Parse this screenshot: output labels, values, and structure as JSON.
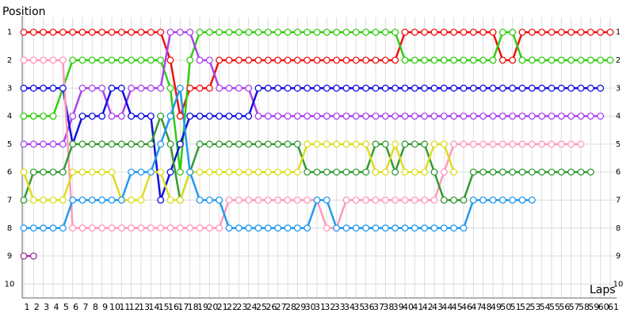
{
  "chart_data": {
    "type": "line",
    "y_label": "Position",
    "x_label": "Laps",
    "x": [
      1,
      2,
      3,
      4,
      5,
      6,
      7,
      8,
      9,
      10,
      11,
      12,
      13,
      14,
      15,
      16,
      17,
      18,
      19,
      20,
      21,
      22,
      23,
      24,
      25,
      26,
      27,
      28,
      29,
      30,
      31,
      32,
      33,
      34,
      35,
      36,
      37,
      38,
      39,
      40,
      41,
      42,
      43,
      44,
      45,
      46,
      47,
      48,
      49,
      50,
      51,
      52,
      53,
      54,
      55,
      56,
      57,
      58,
      59,
      60,
      61
    ],
    "xlim": [
      1,
      61
    ],
    "ylim": [
      10.5,
      0.5
    ],
    "yticks": [
      1,
      2,
      3,
      4,
      5,
      6,
      7,
      8,
      9,
      10
    ],
    "grid": true,
    "series": [
      {
        "color": "#ee1111",
        "values": [
          1,
          1,
          1,
          1,
          1,
          1,
          1,
          1,
          1,
          1,
          1,
          1,
          1,
          1,
          1,
          2,
          4,
          3,
          3,
          3,
          2,
          2,
          2,
          2,
          2,
          2,
          2,
          2,
          2,
          2,
          2,
          2,
          2,
          2,
          2,
          2,
          2,
          2,
          2,
          1,
          1,
          1,
          1,
          1,
          1,
          1,
          1,
          1,
          1,
          2,
          2,
          1,
          1,
          1,
          1,
          1,
          1,
          1,
          1,
          1,
          1
        ]
      },
      {
        "color": "#33cc11",
        "values": [
          4,
          4,
          4,
          4,
          3,
          2,
          2,
          2,
          2,
          2,
          2,
          2,
          2,
          2,
          2,
          3,
          6,
          2,
          1,
          1,
          1,
          1,
          1,
          1,
          1,
          1,
          1,
          1,
          1,
          1,
          1,
          1,
          1,
          1,
          1,
          1,
          1,
          1,
          1,
          2,
          2,
          2,
          2,
          2,
          2,
          2,
          2,
          2,
          2,
          1,
          1,
          2,
          2,
          2,
          2,
          2,
          2,
          2,
          2,
          2,
          2
        ]
      },
      {
        "color": "#aa44ee",
        "values": [
          5,
          5,
          5,
          5,
          5,
          4,
          3,
          3,
          3,
          4,
          4,
          3,
          3,
          3,
          3,
          1,
          1,
          1,
          2,
          2,
          3,
          3,
          3,
          3,
          4,
          4,
          4,
          4,
          4,
          4,
          4,
          4,
          4,
          4,
          4,
          4,
          4,
          4,
          4,
          4,
          4,
          4,
          4,
          4,
          4,
          4,
          4,
          4,
          4,
          4,
          4,
          4,
          4,
          4,
          4,
          4,
          4,
          4,
          4,
          4,
          null
        ]
      },
      {
        "color": "#1111dd",
        "values": [
          3,
          3,
          3,
          3,
          3,
          5,
          4,
          4,
          4,
          3,
          3,
          4,
          4,
          4,
          7,
          6,
          5,
          4,
          4,
          4,
          4,
          4,
          4,
          4,
          3,
          3,
          3,
          3,
          3,
          3,
          3,
          3,
          3,
          3,
          3,
          3,
          3,
          3,
          3,
          3,
          3,
          3,
          3,
          3,
          3,
          3,
          3,
          3,
          3,
          3,
          3,
          3,
          3,
          3,
          3,
          3,
          3,
          3,
          3,
          3,
          null
        ]
      },
      {
        "color": "#ff99bb",
        "values": [
          2,
          2,
          2,
          2,
          2,
          8,
          8,
          8,
          8,
          8,
          8,
          8,
          8,
          8,
          8,
          8,
          8,
          8,
          8,
          8,
          8,
          7,
          7,
          7,
          7,
          7,
          7,
          7,
          7,
          7,
          7,
          8,
          8,
          7,
          7,
          7,
          7,
          7,
          7,
          7,
          7,
          7,
          7,
          6,
          5,
          5,
          5,
          5,
          5,
          5,
          5,
          5,
          5,
          5,
          5,
          5,
          5,
          5,
          null,
          null,
          null
        ]
      },
      {
        "color": "#339933",
        "values": [
          7,
          6,
          6,
          6,
          6,
          5,
          5,
          5,
          5,
          5,
          5,
          5,
          5,
          5,
          4,
          5,
          7,
          6,
          5,
          5,
          5,
          5,
          5,
          5,
          5,
          5,
          5,
          5,
          5,
          6,
          6,
          6,
          6,
          6,
          6,
          6,
          5,
          5,
          6,
          5,
          5,
          5,
          6,
          7,
          7,
          7,
          6,
          6,
          6,
          6,
          6,
          6,
          6,
          6,
          6,
          6,
          6,
          6,
          6,
          null,
          null
        ]
      },
      {
        "color": "#dddd22",
        "values": [
          6,
          7,
          7,
          7,
          7,
          6,
          6,
          6,
          6,
          6,
          7,
          7,
          7,
          6,
          6,
          7,
          7,
          6,
          6,
          6,
          6,
          6,
          6,
          6,
          6,
          6,
          6,
          6,
          6,
          5,
          5,
          5,
          5,
          5,
          5,
          5,
          6,
          6,
          5,
          6,
          6,
          6,
          5,
          5,
          6,
          null,
          null,
          null,
          null,
          null,
          null,
          null,
          null,
          null,
          null,
          null,
          null,
          null,
          null,
          null,
          null
        ]
      },
      {
        "color": "#2299ee",
        "values": [
          8,
          8,
          8,
          8,
          8,
          7,
          7,
          7,
          7,
          7,
          7,
          6,
          6,
          6,
          5,
          4,
          3,
          6,
          7,
          7,
          7,
          8,
          8,
          8,
          8,
          8,
          8,
          8,
          8,
          8,
          7,
          7,
          8,
          8,
          8,
          8,
          8,
          8,
          8,
          8,
          8,
          8,
          8,
          8,
          8,
          8,
          7,
          7,
          7,
          7,
          7,
          7,
          7,
          null,
          null,
          null,
          null,
          null,
          null,
          null,
          null
        ]
      },
      {
        "color": "#993399",
        "values": [
          9,
          9,
          null,
          null,
          null,
          null,
          null,
          null,
          null,
          null,
          null,
          null,
          null,
          null,
          null,
          null,
          null,
          null,
          null,
          null,
          null,
          null,
          null,
          null,
          null,
          null,
          null,
          null,
          null,
          null,
          null,
          null,
          null,
          null,
          null,
          null,
          null,
          null,
          null,
          null,
          null,
          null,
          null,
          null,
          null,
          null,
          null,
          null,
          null,
          null,
          null,
          null,
          null,
          null,
          null,
          null,
          null,
          null,
          null,
          null,
          null
        ]
      }
    ]
  }
}
